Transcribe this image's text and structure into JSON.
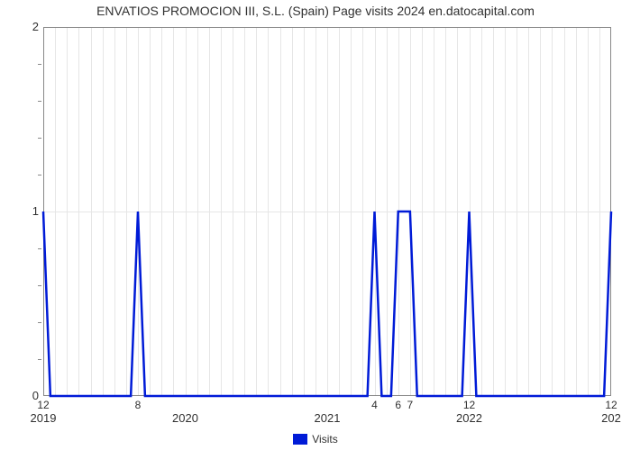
{
  "chart": {
    "type": "line",
    "title": "ENVATIOS PROMOCION III, S.L. (Spain) Page visits 2024 en.datocapital.com",
    "title_fontsize": 14,
    "title_color": "#303030",
    "background_color": "#ffffff",
    "plot_background": "#ffffff",
    "grid_color": "#e6e6e6",
    "border_color": "#888888",
    "line_color": "#001bd7",
    "line_width": 2.5,
    "ylim": [
      0,
      2
    ],
    "y_major_ticks": [
      0,
      1,
      2
    ],
    "y_minor_divisions": 5,
    "xlim_months": [
      0,
      48
    ],
    "x_major": [
      {
        "month": 0,
        "label": "2019"
      },
      {
        "month": 12,
        "label": "2020"
      },
      {
        "month": 24,
        "label": "2021"
      },
      {
        "month": 36,
        "label": "2022"
      },
      {
        "month": 48,
        "label": "202"
      }
    ],
    "x_minor": [
      {
        "month": 0,
        "label": "12"
      },
      {
        "month": 8,
        "label": "8"
      },
      {
        "month": 28,
        "label": "4"
      },
      {
        "month": 30,
        "label": "6"
      },
      {
        "month": 31,
        "label": "7"
      },
      {
        "month": 36,
        "label": "12"
      },
      {
        "month": 48,
        "label": "12"
      }
    ],
    "legend": {
      "label": "Visits",
      "color": "#001bd7",
      "fontsize": 12
    },
    "series": {
      "name": "Visits",
      "points": [
        [
          0,
          1
        ],
        [
          0.6,
          0
        ],
        [
          7.4,
          0
        ],
        [
          8,
          1
        ],
        [
          8.6,
          0
        ],
        [
          27.4,
          0
        ],
        [
          28,
          1
        ],
        [
          28.6,
          0
        ],
        [
          29.4,
          0
        ],
        [
          30,
          1
        ],
        [
          31,
          1
        ],
        [
          31.6,
          0
        ],
        [
          35.4,
          0
        ],
        [
          36,
          1
        ],
        [
          36.6,
          0
        ],
        [
          47.4,
          0
        ],
        [
          48,
          1
        ]
      ]
    }
  }
}
